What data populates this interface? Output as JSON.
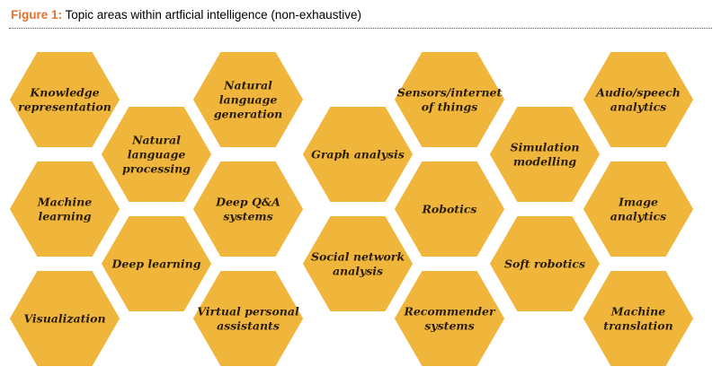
{
  "figure": {
    "label": "Figure 1:",
    "title": "Topic areas within artficial intelligence (non-exhaustive)"
  },
  "colors": {
    "hex_fill": "#f0b63c",
    "hex_text": "#2a1d0b",
    "figure_label": "#e8712c"
  },
  "topics": [
    {
      "id": "knowledge-representation",
      "lines": [
        "Knowledge",
        "representation"
      ]
    },
    {
      "id": "machine-learning",
      "lines": [
        "Machine",
        "learning"
      ]
    },
    {
      "id": "visualization",
      "lines": [
        "Visualization"
      ]
    },
    {
      "id": "natural-language-processing",
      "lines": [
        "Natural",
        "language",
        "processing"
      ]
    },
    {
      "id": "deep-learning",
      "lines": [
        "Deep learning"
      ]
    },
    {
      "id": "natural-language-generation",
      "lines": [
        "Natural",
        "language",
        "generation"
      ]
    },
    {
      "id": "deep-qa-systems",
      "lines": [
        "Deep Q&A",
        "systems"
      ]
    },
    {
      "id": "virtual-personal-assistants",
      "lines": [
        "Virtual personal",
        "assistants"
      ]
    },
    {
      "id": "graph-analysis",
      "lines": [
        "Graph analysis"
      ]
    },
    {
      "id": "social-network-analysis",
      "lines": [
        "Social network",
        "analysis"
      ]
    },
    {
      "id": "sensors-internet-of-things",
      "lines": [
        "Sensors/internet",
        "of things"
      ]
    },
    {
      "id": "robotics",
      "lines": [
        "Robotics"
      ]
    },
    {
      "id": "recommender-systems",
      "lines": [
        "Recommender",
        "systems"
      ]
    },
    {
      "id": "simulation-modelling",
      "lines": [
        "Simulation",
        "modelling"
      ]
    },
    {
      "id": "soft-robotics",
      "lines": [
        "Soft robotics"
      ]
    },
    {
      "id": "audio-speech-analytics",
      "lines": [
        "Audio/speech",
        "analytics"
      ]
    },
    {
      "id": "image-analytics",
      "lines": [
        "Image",
        "analytics"
      ]
    },
    {
      "id": "machine-translation",
      "lines": [
        "Machine",
        "translation"
      ]
    }
  ]
}
